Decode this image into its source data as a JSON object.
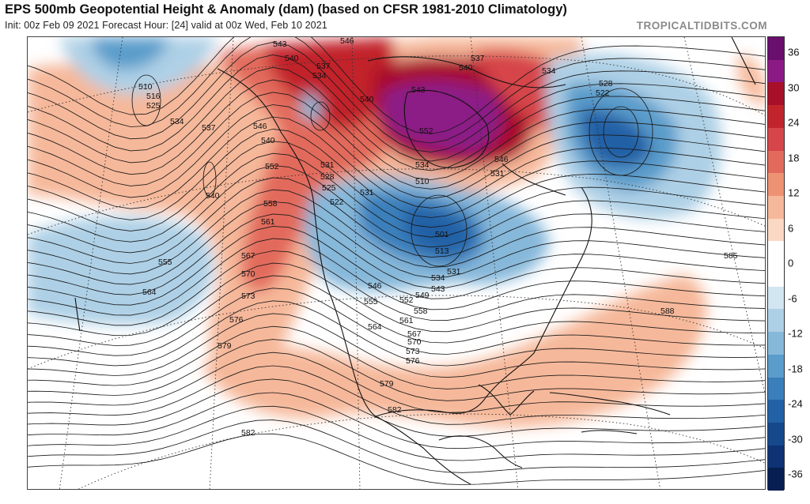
{
  "header": {
    "title": "EPS 500mb Geopotential Height & Anomaly (dam) (based on CFSR 1981-2010 Climatology)",
    "subtitle": "Init: 00z Feb 09 2021   Forecast Hour: [24]   valid at 00z Wed, Feb 10 2021",
    "credit": "TROPICALTIDBITS.COM"
  },
  "colorbar": {
    "ticks": [
      "36",
      "30",
      "24",
      "18",
      "12",
      "6",
      "0",
      "-6",
      "-12",
      "-18",
      "-24",
      "-30",
      "-36"
    ],
    "colors": [
      "#6a0f6e",
      "#8c1a86",
      "#a8102a",
      "#c2242c",
      "#d6454a",
      "#e26a5c",
      "#ee9274",
      "#f6b89a",
      "#fbd8c4",
      "#ffffff",
      "#ffffff",
      "#d2e6f1",
      "#aed0e6",
      "#86b8da",
      "#5a9ccb",
      "#3a7fbb",
      "#2361a6",
      "#16488c",
      "#0e3274",
      "#061e52"
    ]
  },
  "contour_labels": [
    {
      "text": "543"
    },
    {
      "text": "540"
    },
    {
      "text": "537"
    },
    {
      "text": "534"
    },
    {
      "text": "546"
    },
    {
      "text": "540"
    },
    {
      "text": "543"
    },
    {
      "text": "552"
    },
    {
      "text": "537"
    },
    {
      "text": "540"
    },
    {
      "text": "534"
    },
    {
      "text": "528"
    },
    {
      "text": "522"
    },
    {
      "text": "510"
    },
    {
      "text": "516"
    },
    {
      "text": "525"
    },
    {
      "text": "534"
    },
    {
      "text": "537"
    },
    {
      "text": "546"
    },
    {
      "text": "540"
    },
    {
      "text": "552"
    },
    {
      "text": "540"
    },
    {
      "text": "558"
    },
    {
      "text": "561"
    },
    {
      "text": "531"
    },
    {
      "text": "528"
    },
    {
      "text": "525"
    },
    {
      "text": "522"
    },
    {
      "text": "510"
    },
    {
      "text": "534"
    },
    {
      "text": "531"
    },
    {
      "text": "501"
    },
    {
      "text": "513"
    },
    {
      "text": "534"
    },
    {
      "text": "543"
    },
    {
      "text": "531"
    },
    {
      "text": "546"
    },
    {
      "text": "555"
    },
    {
      "text": "552"
    },
    {
      "text": "549"
    },
    {
      "text": "558"
    },
    {
      "text": "561"
    },
    {
      "text": "564"
    },
    {
      "text": "567"
    },
    {
      "text": "570"
    },
    {
      "text": "573"
    },
    {
      "text": "576"
    },
    {
      "text": "579"
    },
    {
      "text": "582"
    },
    {
      "text": "555"
    },
    {
      "text": "564"
    },
    {
      "text": "567"
    },
    {
      "text": "570"
    },
    {
      "text": "573"
    },
    {
      "text": "576"
    },
    {
      "text": "579"
    },
    {
      "text": "582"
    },
    {
      "text": "585"
    },
    {
      "text": "588"
    },
    {
      "text": "546"
    },
    {
      "text": "531"
    }
  ]
}
